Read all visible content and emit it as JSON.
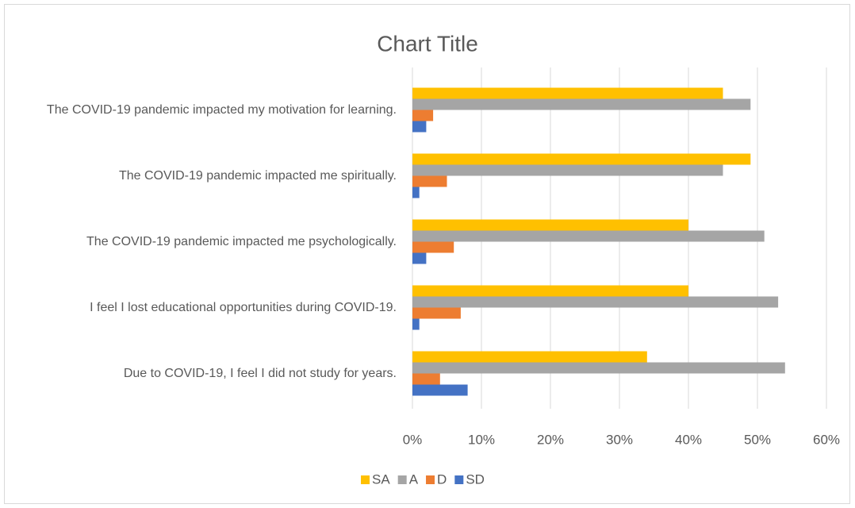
{
  "chart_data": {
    "type": "hbar",
    "title": "Chart Title",
    "categories": [
      "The COVID-19 pandemic impacted my motivation for learning.",
      "The COVID-19 pandemic impacted me spiritually.",
      "The COVID-19 pandemic impacted me psychologically.",
      "I feel I lost educational opportunities during COVID-19.",
      "Due to COVID-19, I feel I did not study for years."
    ],
    "series": [
      {
        "name": "SA",
        "color": "#ffc000",
        "values": [
          45,
          49,
          40,
          40,
          34
        ]
      },
      {
        "name": "A",
        "color": "#a5a5a5",
        "values": [
          49,
          45,
          51,
          53,
          54
        ]
      },
      {
        "name": "D",
        "color": "#ed7d31",
        "values": [
          3,
          5,
          6,
          7,
          4
        ]
      },
      {
        "name": "SD",
        "color": "#4472c4",
        "values": [
          2,
          1,
          2,
          1,
          8
        ]
      }
    ],
    "xlim": [
      0,
      60
    ],
    "xticks": [
      {
        "value": 0,
        "label": "0%"
      },
      {
        "value": 10,
        "label": "10%"
      },
      {
        "value": 20,
        "label": "20%"
      },
      {
        "value": 30,
        "label": "30%"
      },
      {
        "value": 40,
        "label": "40%"
      },
      {
        "value": 50,
        "label": "50%"
      },
      {
        "value": 60,
        "label": "60%"
      }
    ],
    "grid": true,
    "legend": "bottom"
  }
}
